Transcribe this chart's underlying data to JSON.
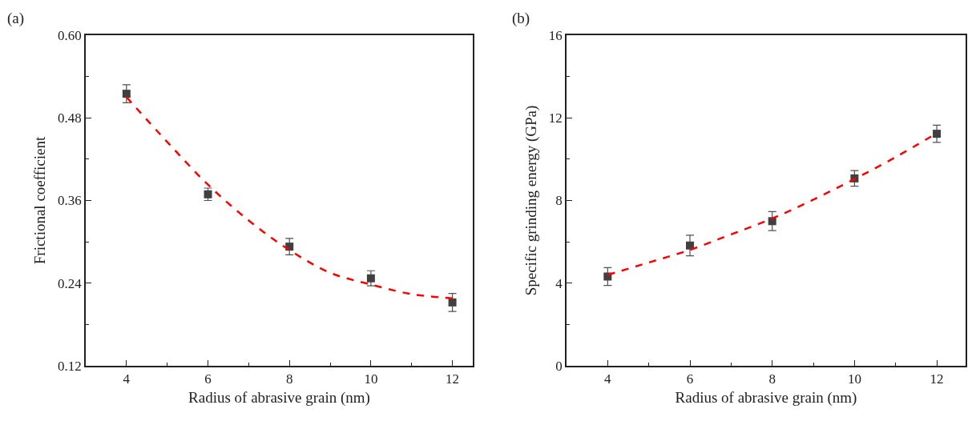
{
  "chart_data": [
    {
      "type": "scatter",
      "title": "(a)",
      "xlabel": "Radius of abrasive grain (nm)",
      "ylabel": "Frictional coefficient",
      "xlim": [
        3,
        12.5
      ],
      "xticks": [
        4,
        6,
        8,
        10,
        12
      ],
      "ylim": [
        0.12,
        0.6
      ],
      "yticks": [
        0.12,
        0.24,
        0.36,
        0.48,
        {
          "value": 0.6,
          "label": "0.60"
        }
      ],
      "series": [
        {
          "color": "#404040",
          "marker": "square",
          "x": [
            4,
            6,
            8,
            10,
            12
          ],
          "values": [
            0.515,
            0.369,
            0.293,
            0.247,
            0.212
          ],
          "errors": [
            0.013,
            0.009,
            0.012,
            0.011,
            0.013
          ]
        },
        {
          "type": "line",
          "color": "#ff0000",
          "marker": "none",
          "line_style": "dashed",
          "x": [
            4,
            5,
            6,
            7,
            8,
            9,
            10,
            11,
            12
          ],
          "values": [
            0.51,
            0.445,
            0.383,
            0.331,
            0.288,
            0.255,
            0.238,
            0.224,
            0.218
          ]
        }
      ]
    },
    {
      "type": "scatter",
      "title": "(b)",
      "xlabel": "Radius of abrasive grain (nm)",
      "ylabel": "Specific grinding energy (GPa)",
      "xlim": [
        3,
        12.7
      ],
      "xticks": [
        4,
        6,
        8,
        10,
        12
      ],
      "ylim": [
        0,
        16
      ],
      "yticks": [
        0,
        4,
        8,
        12,
        16
      ],
      "series": [
        {
          "color": "#404040",
          "marker": "square",
          "x": [
            4,
            6,
            8,
            10,
            12
          ],
          "values": [
            4.32,
            5.82,
            7.0,
            9.07,
            11.23
          ],
          "errors": [
            0.43,
            0.5,
            0.46,
            0.38,
            0.42
          ]
        },
        {
          "type": "line",
          "color": "#ff0000",
          "marker": "none",
          "line_style": "dashed",
          "x": [
            4,
            5,
            6,
            7,
            8,
            9,
            10,
            11,
            12
          ],
          "values": [
            4.4,
            5.0,
            5.61,
            6.36,
            7.13,
            8.04,
            9.04,
            10.1,
            11.26
          ]
        }
      ]
    }
  ]
}
